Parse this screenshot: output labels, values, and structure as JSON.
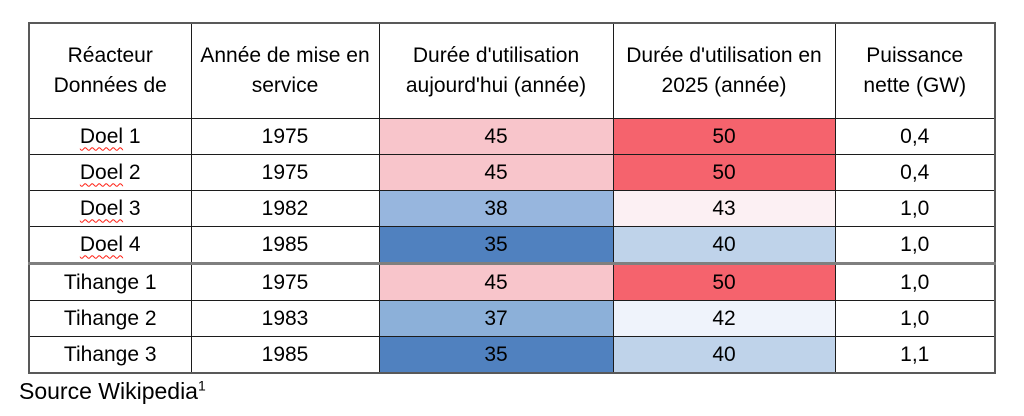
{
  "table": {
    "headers": {
      "reactor_line1": "Réacteur",
      "reactor_line2": "Données de",
      "year": "Année de mise en service",
      "duration_today": "Durée d'utilisation aujourd'hui (année)",
      "duration_2025": "Durée d'utilisation en 2025 (année)",
      "power": "Puissance nette (GW)"
    },
    "rows": [
      {
        "reactor": {
          "word": "Doel",
          "rest": " 1",
          "misspelled": true
        },
        "year": "1975",
        "duration_today": {
          "value": "45",
          "bg": "#F8C5CB"
        },
        "duration_2025": {
          "value": "50",
          "bg": "#F5636D"
        },
        "power": "0,4",
        "group_start": false
      },
      {
        "reactor": {
          "word": "Doel",
          "rest": " 2",
          "misspelled": true
        },
        "year": "1975",
        "duration_today": {
          "value": "45",
          "bg": "#F8C5CB"
        },
        "duration_2025": {
          "value": "50",
          "bg": "#F5636D"
        },
        "power": "0,4",
        "group_start": false
      },
      {
        "reactor": {
          "word": "Doel",
          "rest": " 3",
          "misspelled": true
        },
        "year": "1982",
        "duration_today": {
          "value": "38",
          "bg": "#97B6DE"
        },
        "duration_2025": {
          "value": "43",
          "bg": "#FCF0F3"
        },
        "power": "1,0",
        "group_start": false
      },
      {
        "reactor": {
          "word": "Doel",
          "rest": " 4",
          "misspelled": true
        },
        "year": "1985",
        "duration_today": {
          "value": "35",
          "bg": "#5081BF"
        },
        "duration_2025": {
          "value": "40",
          "bg": "#BFD3EA"
        },
        "power": "1,0",
        "group_start": false
      },
      {
        "reactor": {
          "word": "Tihange",
          "rest": " 1",
          "misspelled": false
        },
        "year": "1975",
        "duration_today": {
          "value": "45",
          "bg": "#F8C5CB"
        },
        "duration_2025": {
          "value": "50",
          "bg": "#F5636D"
        },
        "power": "1,0",
        "group_start": true
      },
      {
        "reactor": {
          "word": "Tihange",
          "rest": " 2",
          "misspelled": false
        },
        "year": "1983",
        "duration_today": {
          "value": "37",
          "bg": "#8CB0D9"
        },
        "duration_2025": {
          "value": "42",
          "bg": "#EFF3FB"
        },
        "power": "1,0",
        "group_start": false
      },
      {
        "reactor": {
          "word": "Tihange",
          "rest": " 3",
          "misspelled": false
        },
        "year": "1985",
        "duration_today": {
          "value": "35",
          "bg": "#5081BF"
        },
        "duration_2025": {
          "value": "40",
          "bg": "#BFD3EA"
        },
        "power": "1,1",
        "group_start": false
      }
    ]
  },
  "footer": {
    "source_text": "Source Wikipedia",
    "footnote": "1"
  },
  "colors": {
    "scale_min_blue": "#5081BF",
    "scale_mid_white": "#FCFCFF",
    "scale_max_red": "#F5636D",
    "outer_border": "#595959",
    "inner_border": "#1c1c1c",
    "group_separator": "#7f7f7f",
    "spellcheck_squiggle": "#ff1a0e"
  }
}
